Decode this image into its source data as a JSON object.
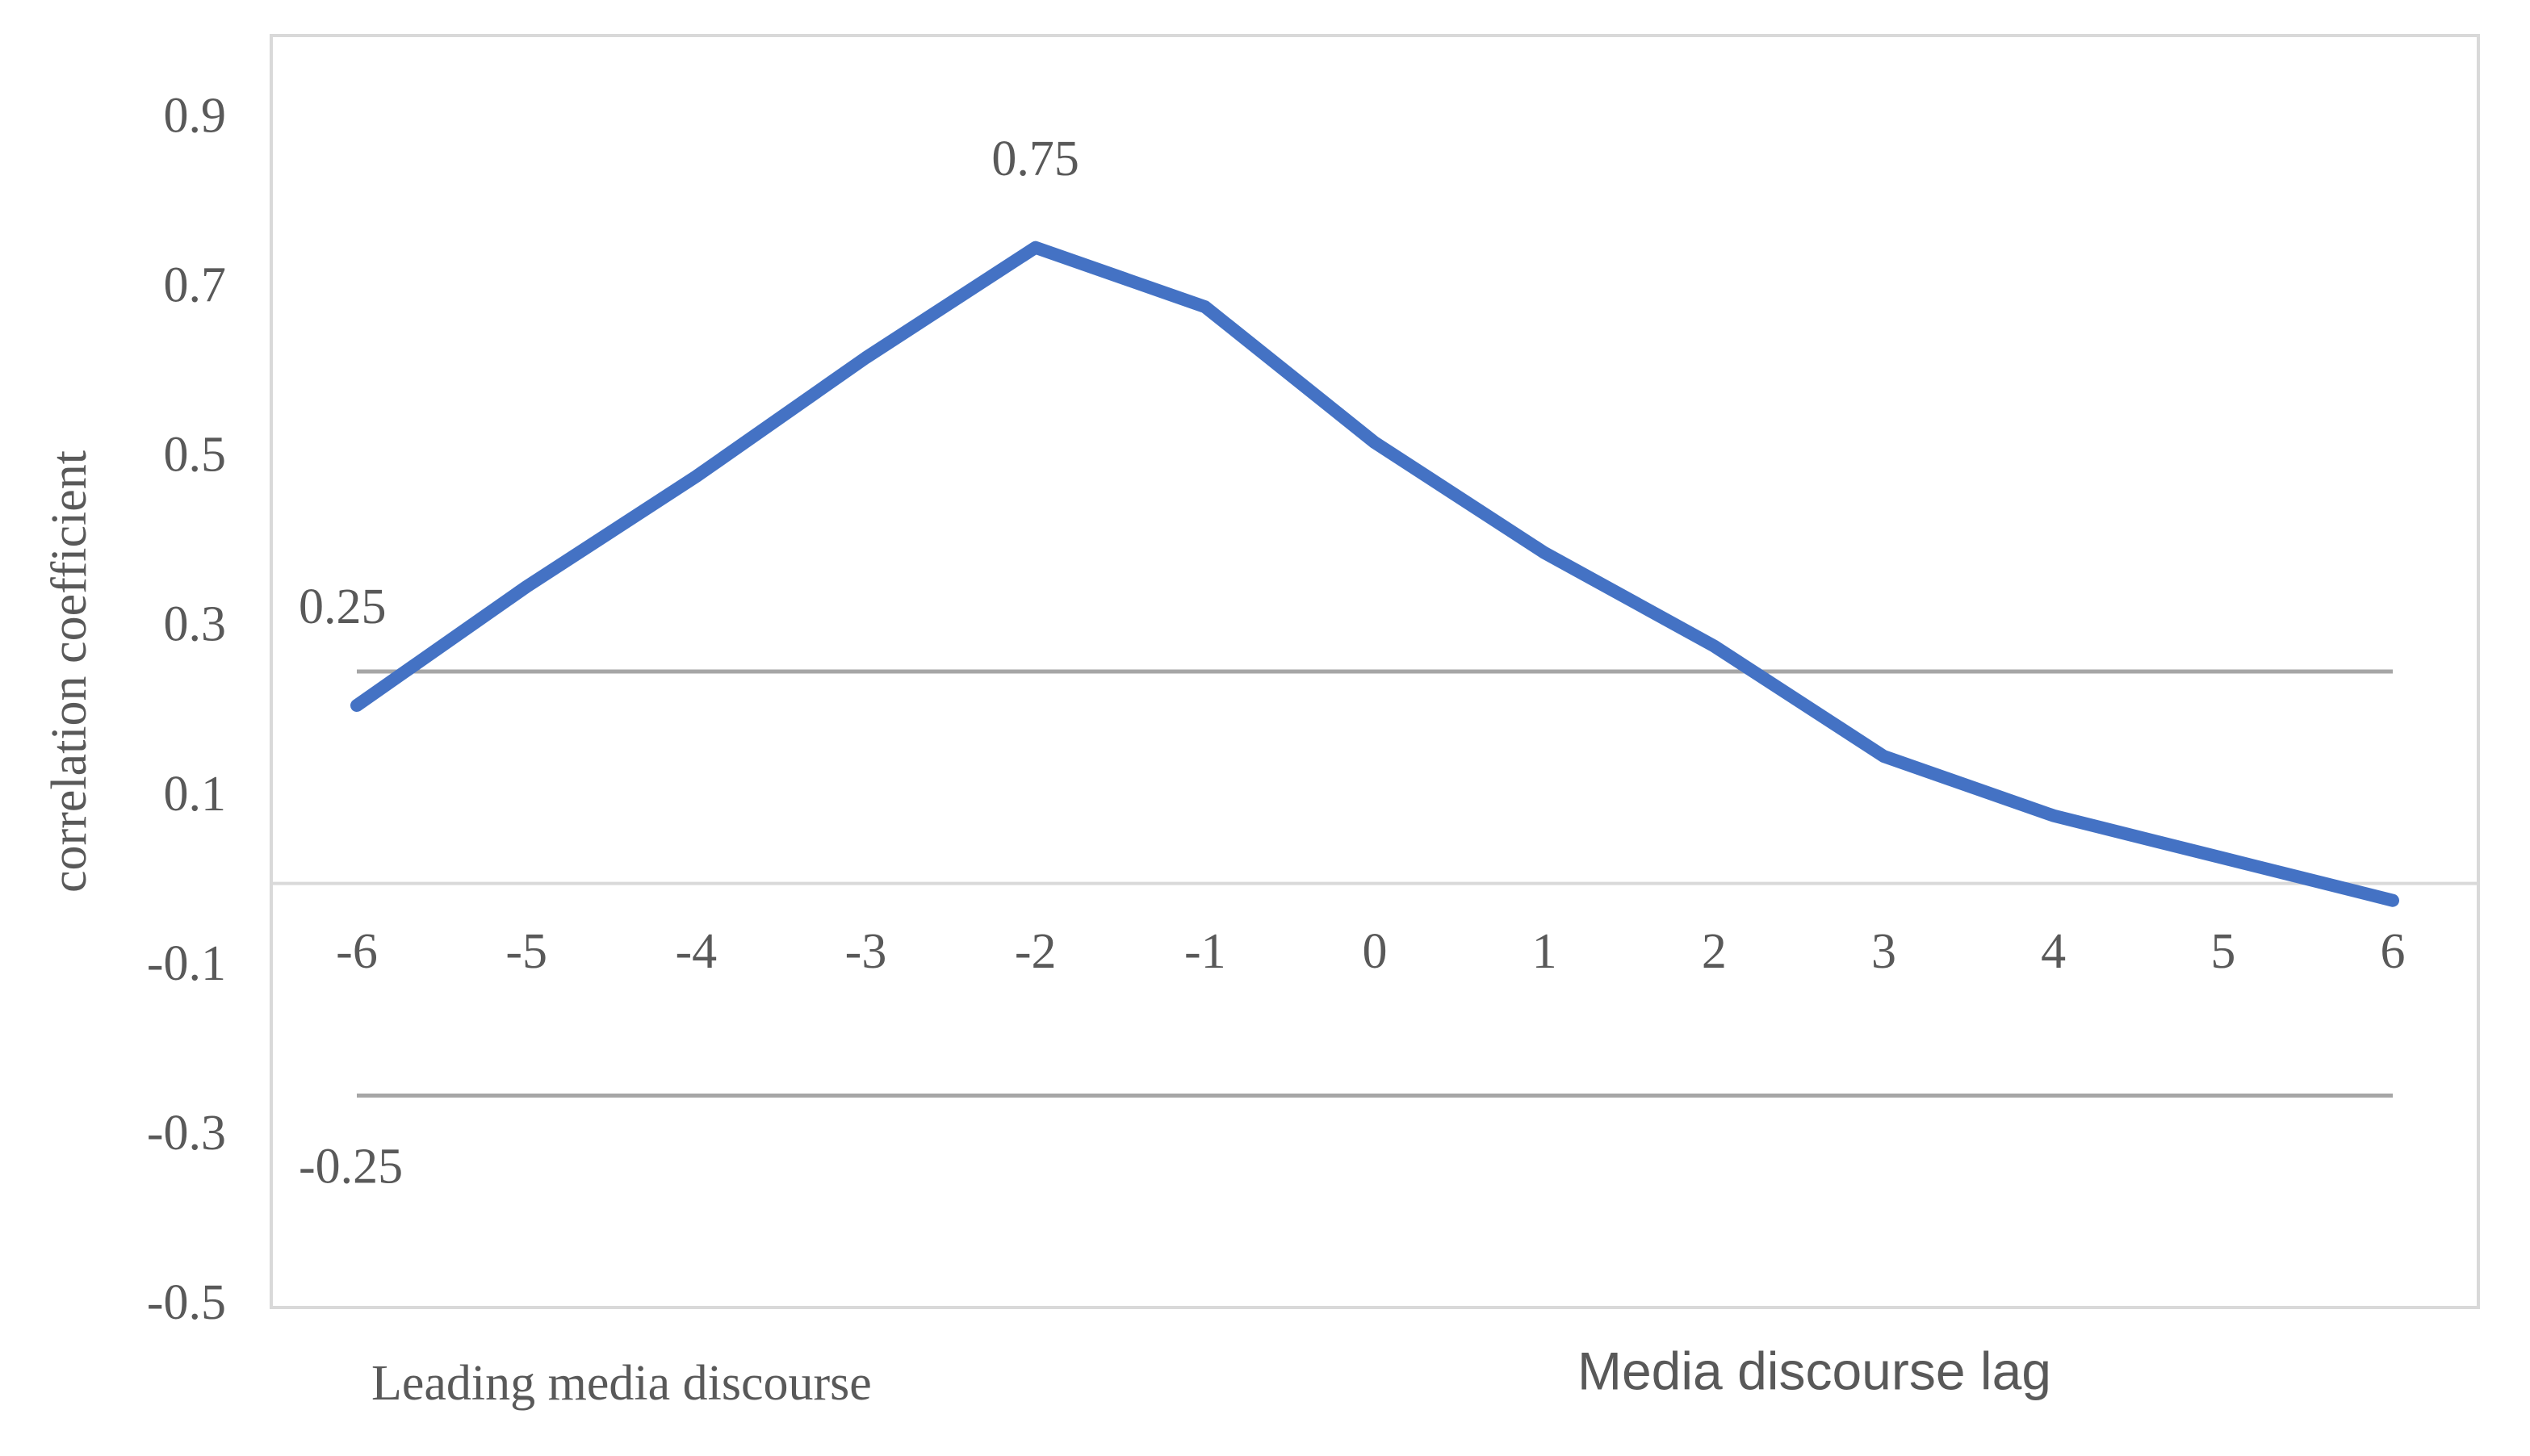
{
  "chart_data": {
    "type": "line",
    "x": [
      -6,
      -5,
      -4,
      -3,
      -2,
      -1,
      0,
      1,
      2,
      3,
      4,
      5,
      6
    ],
    "values": [
      0.21,
      0.35,
      0.48,
      0.62,
      0.75,
      0.68,
      0.52,
      0.39,
      0.28,
      0.15,
      0.08,
      0.03,
      -0.02
    ],
    "color": "#4472c4",
    "xlim": [
      -6,
      6
    ],
    "xticks": [
      -6,
      -5,
      -4,
      -3,
      -2,
      -1,
      0,
      1,
      2,
      3,
      4,
      5,
      6
    ],
    "ylim": [
      -0.5,
      1.0
    ],
    "yticks": [
      -0.5,
      -0.3,
      -0.1,
      0.1,
      0.3,
      0.5,
      0.7,
      0.9
    ],
    "ylabel": "correlation coefficient",
    "reference_lines": [
      0.25,
      -0.25
    ],
    "annotations": [
      {
        "x": -2,
        "value": 0.75
      }
    ],
    "bottom_labels": [
      "Leading media discourse",
      "Media discourse lag"
    ]
  }
}
